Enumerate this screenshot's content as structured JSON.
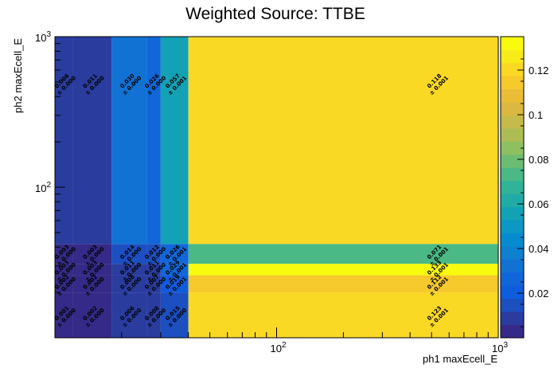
{
  "chart_data": {
    "type": "heatmap",
    "title": "Weighted Source: TTBE",
    "xlabel": "ph1 maxEcell_E",
    "ylabel": "ph2 maxEcell_E",
    "x_scale": "log",
    "y_scale": "log",
    "xlim": [
      10,
      1000
    ],
    "ylim": [
      10,
      1000
    ],
    "x_tick_labels": [
      "10^2",
      "10^3"
    ],
    "y_tick_labels": [
      "10^2",
      "10^3"
    ],
    "x_edges": [
      10,
      12,
      18,
      26,
      30,
      40,
      1000
    ],
    "y_edges": [
      10,
      20,
      26,
      31,
      42,
      1000
    ],
    "z_range": [
      0,
      0.135
    ],
    "z_ticks": [
      "0.02",
      "0.04",
      "0.06",
      "0.08",
      "0.1",
      "0.12"
    ],
    "palette": [
      "#352a87",
      "#2a3c9e",
      "#1c4fc0",
      "#0f5cdd",
      "#1167d9",
      "#1172d3",
      "#0d80d0",
      "#078bcf",
      "#0d97c3",
      "#13a2b5",
      "#20aba7",
      "#30b397",
      "#4bb985",
      "#6cbc72",
      "#8ebf61",
      "#adbd54",
      "#c6bb4a",
      "#dab841",
      "#ebbd36",
      "#f6c92c",
      "#fad924",
      "#f8eb1a",
      "#f9fb0e"
    ],
    "bins": [
      {
        "col": 0,
        "row": 0,
        "z": 0.001,
        "label": "0.001",
        "err": "± 0.000"
      },
      {
        "col": 0,
        "row": 1,
        "z": 0.002,
        "label": "0.002",
        "err": "± 0.000"
      },
      {
        "col": 0,
        "row": 2,
        "z": 0.003,
        "label": "0.003",
        "err": "± 0.000"
      },
      {
        "col": 0,
        "row": 3,
        "z": 0.003,
        "label": "0.003",
        "err": "± 0.000"
      },
      {
        "col": 0,
        "row": 4,
        "z": 0.006,
        "label": "0.006",
        "err": "± 0.000"
      },
      {
        "col": 1,
        "row": 0,
        "z": 0.002,
        "label": "0.002",
        "err": "± 0.000"
      },
      {
        "col": 1,
        "row": 1,
        "z": 0.002,
        "label": "0.002",
        "err": "± 0.000"
      },
      {
        "col": 1,
        "row": 2,
        "z": 0.003,
        "label": "0.003",
        "err": "± 0.000"
      },
      {
        "col": 1,
        "row": 3,
        "z": 0.003,
        "label": "0.003",
        "err": "± 0.000"
      },
      {
        "col": 1,
        "row": 4,
        "z": 0.011,
        "label": "0.011",
        "err": "± 0.000"
      },
      {
        "col": 2,
        "row": 0,
        "z": 0.006,
        "label": "0.006",
        "err": "± 0.000"
      },
      {
        "col": 2,
        "row": 1,
        "z": 0.008,
        "label": "0.008",
        "err": "± 0.000"
      },
      {
        "col": 2,
        "row": 2,
        "z": 0.011,
        "label": "0.011",
        "err": "± 0.000"
      },
      {
        "col": 2,
        "row": 3,
        "z": 0.014,
        "label": "0.014",
        "err": "± 0.000"
      },
      {
        "col": 2,
        "row": 4,
        "z": 0.03,
        "label": "0.030",
        "err": "± 0.000"
      },
      {
        "col": 3,
        "row": 0,
        "z": 0.008,
        "label": "0.008",
        "err": "± 0.000"
      },
      {
        "col": 3,
        "row": 1,
        "z": 0.007,
        "label": "0.007",
        "err": "± 0.000"
      },
      {
        "col": 3,
        "row": 2,
        "z": 0.011,
        "label": "0.011",
        "err": "± 0.000"
      },
      {
        "col": 3,
        "row": 3,
        "z": 0.012,
        "label": "0.012",
        "err": "± 0.000"
      },
      {
        "col": 3,
        "row": 4,
        "z": 0.026,
        "label": "0.026",
        "err": "± 0.000"
      },
      {
        "col": 4,
        "row": 0,
        "z": 0.015,
        "label": "0.015",
        "err": "± 0.000"
      },
      {
        "col": 4,
        "row": 1,
        "z": 0.019,
        "label": "0.019",
        "err": "± 0.001"
      },
      {
        "col": 4,
        "row": 2,
        "z": 0.029,
        "label": "0.029",
        "err": "± 0.001"
      },
      {
        "col": 4,
        "row": 3,
        "z": 0.026,
        "label": "0.026",
        "err": "± 0.001"
      },
      {
        "col": 4,
        "row": 4,
        "z": 0.057,
        "label": "0.057",
        "err": "± 0.001"
      },
      {
        "col": 5,
        "row": 0,
        "z": 0.123,
        "label": "0.123",
        "err": "± 0.001"
      },
      {
        "col": 5,
        "row": 1,
        "z": 0.112,
        "label": "0.112",
        "err": "± 0.001"
      },
      {
        "col": 5,
        "row": 2,
        "z": 0.133,
        "label": "0.133",
        "err": "± 0.001"
      },
      {
        "col": 5,
        "row": 3,
        "z": 0.071,
        "label": "0.071",
        "err": "± 0.001"
      },
      {
        "col": 5,
        "row": 4,
        "z": 0.118,
        "label": "0.118",
        "err": "± 0.001"
      }
    ]
  }
}
